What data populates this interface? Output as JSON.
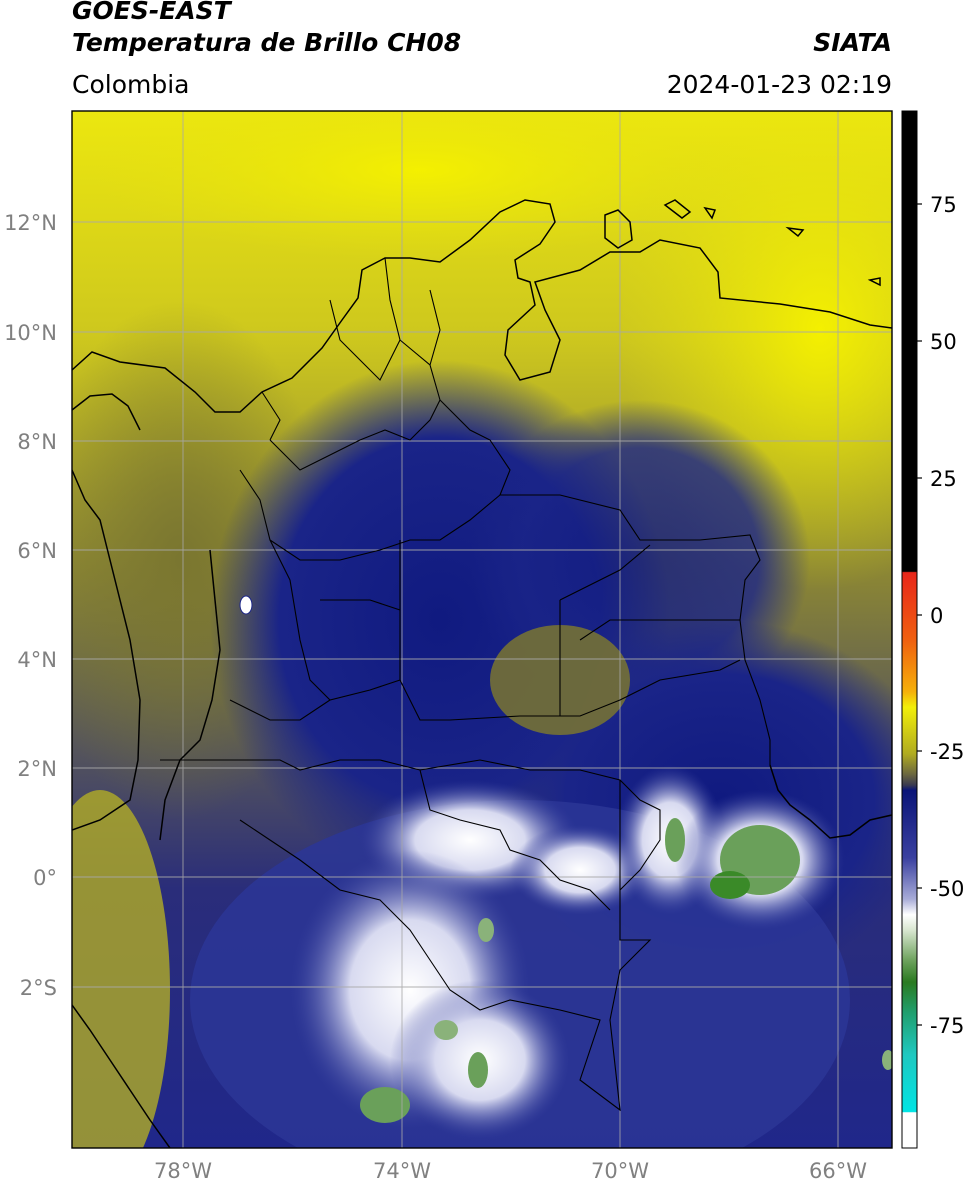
{
  "header": {
    "satellite": "GOES-EAST",
    "product": "Temperatura de Brillo CH08",
    "region": "Colombia",
    "agency": "SIATA",
    "datetime": "2024-01-23 02:19"
  },
  "map": {
    "lat_labels": [
      "12°N",
      "10°N",
      "8°N",
      "6°N",
      "4°N",
      "2°N",
      "0°",
      "2°S"
    ],
    "lon_labels": [
      "78°W",
      "74°W",
      "70°W",
      "66°W"
    ]
  },
  "colorbar": {
    "tick_labels": [
      "75",
      "50",
      "25",
      "0",
      "-25",
      "-50",
      "-75"
    ],
    "colors": {
      "black": "#000000",
      "red": "#e8261a",
      "orange": "#f48a10",
      "yellow": "#f2ef0a",
      "olive": "#5f5a3a",
      "navy": "#0a1478",
      "white": "#ffffff",
      "green": "#3a8a28",
      "teal": "#1fc0b0",
      "cyan": "#00e0e0"
    }
  },
  "colors": {
    "yellow_cloudfree": "#e6e20f",
    "olive": "#8a8535",
    "navy": "#1a2488",
    "white": "#f4f4f8",
    "green": "#5f9a4a"
  }
}
